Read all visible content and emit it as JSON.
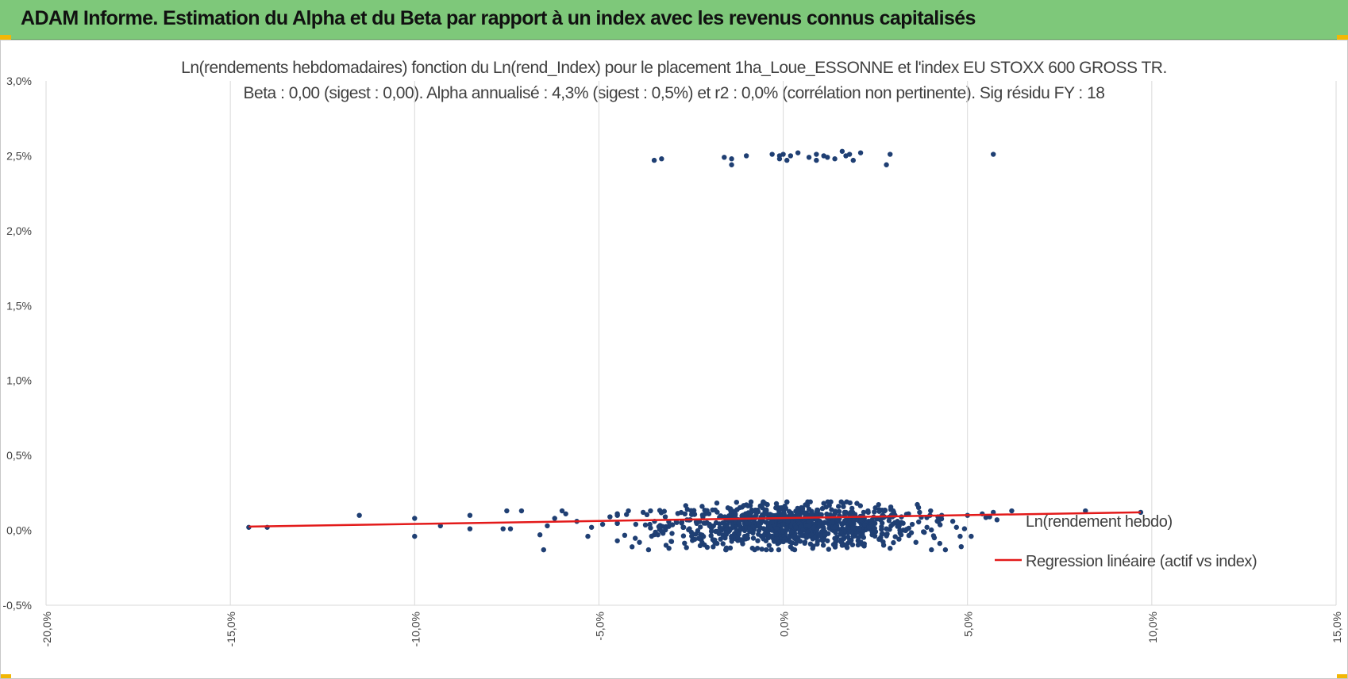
{
  "header": {
    "title": "ADAM Informe. Estimation du Alpha et du Beta par rapport à un index avec les revenus connus capitalisés"
  },
  "colors": {
    "header_bg": "#7ec87a",
    "accent": "#f2b705",
    "points": "#1f3f73",
    "regression": "#e31a1a"
  },
  "chart_data": {
    "type": "scatter",
    "title": "Ln(rendements hebdomadaires) fonction du Ln(rend_Index) pour le placement 1ha_Loue_ESSONNE et l'index EU STOXX 600 GROSS TR.",
    "subtitle": "Beta : 0,00 (sigest : 0,00).  Alpha annualisé : 4,3% (sigest : 0,5%) et r2 : 0,0% (corrélation non pertinente). Sig résidu FY : 18",
    "xlabel": "",
    "ylabel": "",
    "xlim": [
      -0.2,
      0.15
    ],
    "ylim": [
      -0.005,
      0.03
    ],
    "x_ticks": [
      -0.2,
      -0.15,
      -0.1,
      -0.05,
      0.0,
      0.05,
      0.1,
      0.15
    ],
    "x_tick_labels": [
      "-20,0%",
      "-15,0%",
      "-10,0%",
      "-5,0%",
      "0,0%",
      "5,0%",
      "10,0%",
      "15,0%"
    ],
    "y_ticks": [
      -0.005,
      0.0,
      0.005,
      0.01,
      0.015,
      0.02,
      0.025,
      0.03
    ],
    "y_tick_labels": [
      "-0,5%",
      "0,0%",
      "0,5%",
      "1,0%",
      "1,5%",
      "2,0%",
      "2,5%",
      "3,0%"
    ],
    "grid": "vertical",
    "legend_position": "right",
    "series": [
      {
        "name": "Ln(rendement hebdo)",
        "type": "scatter",
        "points": [
          [
            -0.035,
            0.0247
          ],
          [
            -0.033,
            0.0248
          ],
          [
            -0.016,
            0.0249
          ],
          [
            -0.014,
            0.0248
          ],
          [
            -0.014,
            0.0244
          ],
          [
            -0.01,
            0.025
          ],
          [
            -0.003,
            0.0251
          ],
          [
            -0.001,
            0.025
          ],
          [
            -0.001,
            0.0248
          ],
          [
            0.0,
            0.0251
          ],
          [
            0.001,
            0.0247
          ],
          [
            0.002,
            0.025
          ],
          [
            0.004,
            0.0252
          ],
          [
            0.007,
            0.0249
          ],
          [
            0.009,
            0.0251
          ],
          [
            0.009,
            0.0247
          ],
          [
            0.011,
            0.025
          ],
          [
            0.012,
            0.0249
          ],
          [
            0.014,
            0.0248
          ],
          [
            0.016,
            0.0253
          ],
          [
            0.017,
            0.025
          ],
          [
            0.018,
            0.0251
          ],
          [
            0.019,
            0.0247
          ],
          [
            0.021,
            0.0252
          ],
          [
            0.028,
            0.0244
          ],
          [
            0.029,
            0.0251
          ],
          [
            0.057,
            0.0251
          ],
          [
            -0.145,
            0.0002
          ],
          [
            -0.14,
            0.0002
          ],
          [
            -0.115,
            0.001
          ],
          [
            -0.1,
            0.0008
          ],
          [
            -0.1,
            -0.0004
          ],
          [
            -0.093,
            0.0003
          ],
          [
            -0.085,
            0.001
          ],
          [
            -0.085,
            0.0001
          ],
          [
            -0.076,
            0.0001
          ],
          [
            -0.075,
            0.0013
          ],
          [
            -0.074,
            0.0001
          ],
          [
            -0.071,
            0.0013
          ],
          [
            -0.066,
            -0.0003
          ],
          [
            -0.065,
            -0.0013
          ],
          [
            -0.064,
            0.0003
          ],
          [
            -0.062,
            0.0008
          ],
          [
            -0.06,
            0.0013
          ],
          [
            -0.059,
            0.0011
          ],
          [
            -0.056,
            0.0006
          ],
          [
            -0.053,
            -0.0004
          ],
          [
            -0.052,
            0.0002
          ],
          [
            -0.049,
            0.0004
          ],
          [
            -0.047,
            0.0009
          ],
          [
            -0.045,
            0.001
          ],
          [
            -0.045,
            -0.0007
          ],
          [
            -0.042,
            0.0013
          ],
          [
            -0.041,
            -0.0011
          ],
          [
            -0.04,
            0.0004
          ],
          [
            -0.039,
            -0.0008
          ],
          [
            -0.038,
            0.0012
          ],
          [
            -0.036,
            0.0013
          ],
          [
            -0.034,
            -0.0003
          ],
          [
            -0.032,
            0.0009
          ],
          [
            -0.031,
            -0.0012
          ],
          [
            -0.029,
            0.0006
          ],
          [
            -0.027,
            0.0002
          ],
          [
            -0.026,
            0.0014
          ],
          [
            -0.024,
            -0.0006
          ],
          [
            -0.022,
            0.0016
          ],
          [
            -0.02,
            0.0003
          ],
          [
            -0.019,
            -0.0011
          ],
          [
            -0.017,
            0.0009
          ],
          [
            -0.015,
            0.0015
          ],
          [
            -0.014,
            -0.0004
          ],
          [
            -0.013,
            0.0011
          ],
          [
            -0.012,
            0.0005
          ],
          [
            -0.011,
            -0.0009
          ],
          [
            -0.01,
            0.0017
          ],
          [
            -0.009,
            0.0001
          ],
          [
            -0.008,
            0.0013
          ],
          [
            -0.007,
            -0.0012
          ],
          [
            -0.006,
            0.0007
          ],
          [
            -0.005,
            0.0018
          ],
          [
            -0.004,
            -0.0003
          ],
          [
            -0.003,
            0.001
          ],
          [
            -0.002,
            0.0015
          ],
          [
            -0.001,
            -0.0008
          ],
          [
            0.0,
            0.0004
          ],
          [
            0.001,
            0.0019
          ],
          [
            0.002,
            -0.0011
          ],
          [
            0.003,
            0.0008
          ],
          [
            0.004,
            0.0014
          ],
          [
            0.005,
            -0.0002
          ],
          [
            0.006,
            0.0017
          ],
          [
            0.007,
            0.0003
          ],
          [
            0.008,
            -0.0012
          ],
          [
            0.009,
            0.0011
          ],
          [
            0.01,
            0.0006
          ],
          [
            0.011,
            0.0018
          ],
          [
            0.012,
            -0.0007
          ],
          [
            0.013,
            0.0009
          ],
          [
            0.014,
            0.0002
          ],
          [
            0.015,
            0.0016
          ],
          [
            0.016,
            -0.001
          ],
          [
            0.017,
            0.0012
          ],
          [
            0.018,
            0.0005
          ],
          [
            0.019,
            -0.0004
          ],
          [
            0.02,
            0.0018
          ],
          [
            0.021,
            0.0007
          ],
          [
            0.022,
            -0.0009
          ],
          [
            0.023,
            0.0013
          ],
          [
            0.024,
            0.0003
          ],
          [
            0.025,
            0.0015
          ],
          [
            0.026,
            -0.0006
          ],
          [
            0.027,
            0.001
          ],
          [
            0.028,
            0.0001
          ],
          [
            0.029,
            -0.0012
          ],
          [
            0.03,
            0.0012
          ],
          [
            0.031,
            0.0006
          ],
          [
            0.032,
            -0.0003
          ],
          [
            0.034,
            0.0011
          ],
          [
            0.035,
            0.0004
          ],
          [
            0.036,
            -0.0008
          ],
          [
            0.037,
            0.0012
          ],
          [
            0.039,
            0.0002
          ],
          [
            0.04,
            0.0013
          ],
          [
            0.041,
            -0.0005
          ],
          [
            0.042,
            0.0009
          ],
          [
            0.043,
            0.001
          ],
          [
            0.044,
            -0.0013
          ],
          [
            0.046,
            0.0006
          ],
          [
            0.047,
            0.0002
          ],
          [
            0.048,
            -0.0004
          ],
          [
            0.05,
            0.001
          ],
          [
            0.051,
            -0.0004
          ],
          [
            0.054,
            0.0011
          ],
          [
            0.056,
            0.0009
          ],
          [
            0.057,
            0.0012
          ],
          [
            0.058,
            0.0007
          ],
          [
            0.062,
            0.0013
          ],
          [
            0.082,
            0.0013
          ],
          [
            0.097,
            0.0012
          ]
        ],
        "dense_cluster": {
          "x_mean": 0.002,
          "x_sd": 0.017,
          "y_mean": 0.0003,
          "y_sd": 0.0007,
          "count": 900
        }
      },
      {
        "name": "Regression linéaire (actif vs index)",
        "type": "line",
        "points": [
          [
            -0.145,
            0.00025
          ],
          [
            0.097,
            0.0012
          ]
        ]
      }
    ]
  }
}
